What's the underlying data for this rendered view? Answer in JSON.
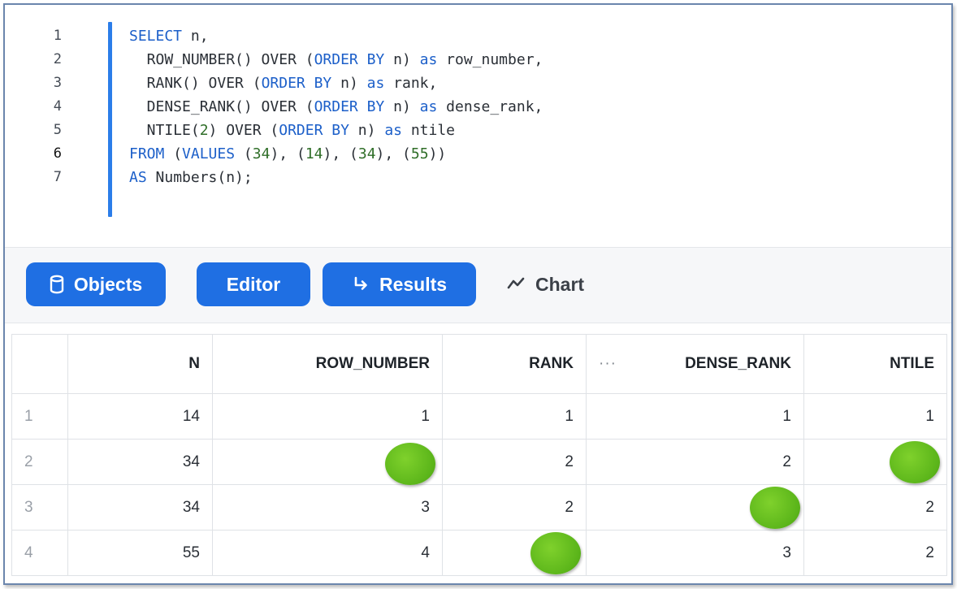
{
  "editor": {
    "line_numbers": [
      "1",
      "2",
      "3",
      "4",
      "5",
      "6",
      "7"
    ],
    "lines": [
      [
        {
          "t": "SELECT",
          "c": "kw"
        },
        {
          "t": " n,",
          "c": ""
        }
      ],
      [
        {
          "t": "  ROW_NUMBER() OVER (",
          "c": ""
        },
        {
          "t": "ORDER BY",
          "c": "kw"
        },
        {
          "t": " n) ",
          "c": ""
        },
        {
          "t": "as",
          "c": "kw"
        },
        {
          "t": " row_number,",
          "c": ""
        }
      ],
      [
        {
          "t": "  RANK() OVER (",
          "c": ""
        },
        {
          "t": "ORDER BY",
          "c": "kw"
        },
        {
          "t": " n) ",
          "c": ""
        },
        {
          "t": "as",
          "c": "kw"
        },
        {
          "t": " rank,",
          "c": ""
        }
      ],
      [
        {
          "t": "  DENSE_RANK() OVER (",
          "c": ""
        },
        {
          "t": "ORDER BY",
          "c": "kw"
        },
        {
          "t": " n) ",
          "c": ""
        },
        {
          "t": "as",
          "c": "kw"
        },
        {
          "t": " dense_rank,",
          "c": ""
        }
      ],
      [
        {
          "t": "  NTILE(",
          "c": ""
        },
        {
          "t": "2",
          "c": "num"
        },
        {
          "t": ") OVER (",
          "c": ""
        },
        {
          "t": "ORDER BY",
          "c": "kw"
        },
        {
          "t": " n) ",
          "c": ""
        },
        {
          "t": "as",
          "c": "kw"
        },
        {
          "t": " ntile",
          "c": ""
        }
      ],
      [
        {
          "t": "FROM",
          "c": "kw"
        },
        {
          "t": " (",
          "c": ""
        },
        {
          "t": "VALUES",
          "c": "kw"
        },
        {
          "t": " (",
          "c": ""
        },
        {
          "t": "34",
          "c": "num"
        },
        {
          "t": "), (",
          "c": ""
        },
        {
          "t": "14",
          "c": "num"
        },
        {
          "t": "), (",
          "c": ""
        },
        {
          "t": "34",
          "c": "num"
        },
        {
          "t": "), (",
          "c": ""
        },
        {
          "t": "55",
          "c": "num"
        },
        {
          "t": "))",
          "c": ""
        }
      ],
      [
        {
          "t": "AS",
          "c": "kw"
        },
        {
          "t": " Numbers(n);",
          "c": ""
        }
      ]
    ]
  },
  "toolbar": {
    "objects_label": "Objects",
    "editor_label": "Editor",
    "results_label": "Results",
    "chart_label": "Chart"
  },
  "results": {
    "columns": [
      "N",
      "ROW_NUMBER",
      "RANK",
      "DENSE_RANK",
      "NTILE"
    ],
    "column_ellipsis": "···",
    "rows": [
      {
        "num": "1",
        "cells": [
          "14",
          "1",
          "1",
          "1",
          "1"
        ]
      },
      {
        "num": "2",
        "cells": [
          "34",
          "",
          "2",
          "2",
          ""
        ]
      },
      {
        "num": "3",
        "cells": [
          "34",
          "3",
          "2",
          "",
          "2"
        ]
      },
      {
        "num": "4",
        "cells": [
          "55",
          "4",
          "",
          "3",
          "2"
        ]
      }
    ],
    "highlight_color": "#5bb51a"
  },
  "colors": {
    "accent": "#1f6fe3",
    "keyword": "#1c5fc9",
    "number": "#2f6e28"
  }
}
